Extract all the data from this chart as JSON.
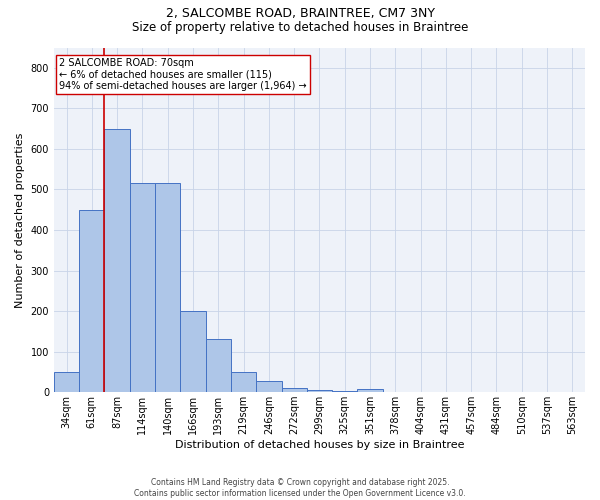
{
  "title_line1": "2, SALCOMBE ROAD, BRAINTREE, CM7 3NY",
  "title_line2": "Size of property relative to detached houses in Braintree",
  "xlabel": "Distribution of detached houses by size in Braintree",
  "ylabel": "Number of detached properties",
  "categories": [
    "34sqm",
    "61sqm",
    "87sqm",
    "114sqm",
    "140sqm",
    "166sqm",
    "193sqm",
    "219sqm",
    "246sqm",
    "272sqm",
    "299sqm",
    "325sqm",
    "351sqm",
    "378sqm",
    "404sqm",
    "431sqm",
    "457sqm",
    "484sqm",
    "510sqm",
    "537sqm",
    "563sqm"
  ],
  "values": [
    50,
    450,
    650,
    515,
    515,
    200,
    130,
    50,
    27,
    10,
    5,
    2,
    7,
    0,
    0,
    0,
    0,
    0,
    0,
    0,
    0
  ],
  "bar_color": "#aec6e8",
  "bar_edge_color": "#4472c4",
  "vline_x_index": 1,
  "vline_color": "#cc0000",
  "annotation_text": "2 SALCOMBE ROAD: 70sqm\n← 6% of detached houses are smaller (115)\n94% of semi-detached houses are larger (1,964) →",
  "annotation_box_color": "#ffffff",
  "annotation_box_edge_color": "#cc0000",
  "grid_color": "#c8d4e8",
  "background_color": "#eef2f9",
  "footer_text": "Contains HM Land Registry data © Crown copyright and database right 2025.\nContains public sector information licensed under the Open Government Licence v3.0.",
  "ylim": [
    0,
    850
  ],
  "yticks": [
    0,
    100,
    200,
    300,
    400,
    500,
    600,
    700,
    800
  ],
  "title1_fontsize": 9,
  "title2_fontsize": 8.5,
  "xlabel_fontsize": 8,
  "ylabel_fontsize": 8,
  "tick_fontsize": 7,
  "annotation_fontsize": 7,
  "footer_fontsize": 5.5
}
